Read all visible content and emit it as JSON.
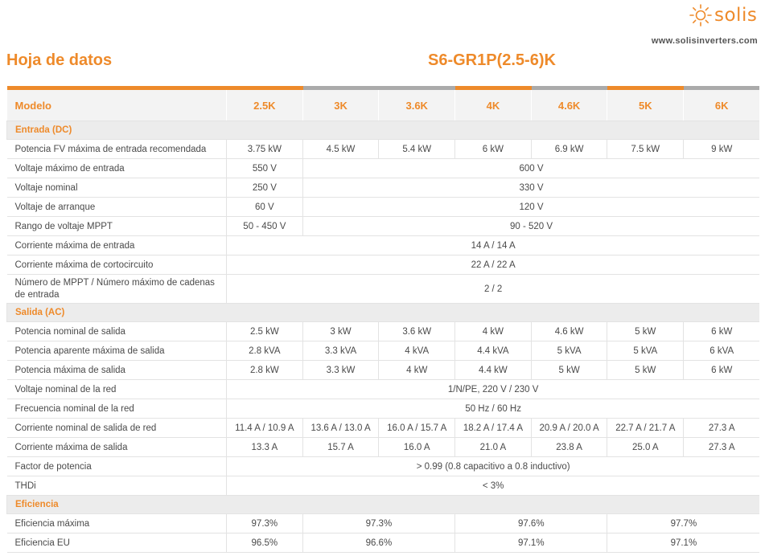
{
  "brand": {
    "logo_text": "solis",
    "website": "www.solisinverters.com",
    "accent_color": "#ee8a2a"
  },
  "title": "Hoja de datos",
  "model_series": "S6-GR1P(2.5-6)K",
  "header": {
    "label": "Modelo",
    "models": [
      "2.5K",
      "3K",
      "3.6K",
      "4K",
      "4.6K",
      "5K",
      "6K"
    ]
  },
  "sections": [
    {
      "title": "Entrada (DC)",
      "rows": [
        {
          "label": "Potencia FV máxima de entrada recomendada",
          "cells": [
            {
              "text": "3.75 kW",
              "span": 1
            },
            {
              "text": "4.5 kW",
              "span": 1
            },
            {
              "text": "5.4 kW",
              "span": 1
            },
            {
              "text": "6 kW",
              "span": 1
            },
            {
              "text": "6.9 kW",
              "span": 1
            },
            {
              "text": "7.5 kW",
              "span": 1
            },
            {
              "text": "9 kW",
              "span": 1
            }
          ]
        },
        {
          "label": "Voltaje máximo de entrada",
          "cells": [
            {
              "text": "550 V",
              "span": 1
            },
            {
              "text": "600 V",
              "span": 6
            }
          ]
        },
        {
          "label": "Voltaje nominal",
          "cells": [
            {
              "text": "250 V",
              "span": 1
            },
            {
              "text": "330 V",
              "span": 6
            }
          ]
        },
        {
          "label": "Voltaje de arranque",
          "cells": [
            {
              "text": "60 V",
              "span": 1
            },
            {
              "text": "120 V",
              "span": 6
            }
          ]
        },
        {
          "label": "Rango de voltaje MPPT",
          "cells": [
            {
              "text": "50 - 450 V",
              "span": 1
            },
            {
              "text": "90 - 520 V",
              "span": 6
            }
          ]
        },
        {
          "label": "Corriente máxima de entrada",
          "cells": [
            {
              "text": "14 A / 14 A",
              "span": 7
            }
          ]
        },
        {
          "label": "Corriente máxima de cortocircuito",
          "cells": [
            {
              "text": "22 A / 22 A",
              "span": 7
            }
          ]
        },
        {
          "label": "Número de MPPT / Número máximo de cadenas de entrada",
          "tall": true,
          "cells": [
            {
              "text": "2 / 2",
              "span": 7
            }
          ]
        }
      ]
    },
    {
      "title": "Salida (AC)",
      "rows": [
        {
          "label": "Potencia nominal de salida",
          "cells": [
            {
              "text": "2.5 kW",
              "span": 1
            },
            {
              "text": "3 kW",
              "span": 1
            },
            {
              "text": "3.6 kW",
              "span": 1
            },
            {
              "text": "4 kW",
              "span": 1
            },
            {
              "text": "4.6 kW",
              "span": 1
            },
            {
              "text": "5 kW",
              "span": 1
            },
            {
              "text": "6 kW",
              "span": 1
            }
          ]
        },
        {
          "label": "Potencia aparente máxima de salida",
          "cells": [
            {
              "text": "2.8 kVA",
              "span": 1
            },
            {
              "text": "3.3 kVA",
              "span": 1
            },
            {
              "text": "4 kVA",
              "span": 1
            },
            {
              "text": "4.4 kVA",
              "span": 1
            },
            {
              "text": "5 kVA",
              "span": 1
            },
            {
              "text": "5 kVA",
              "span": 1
            },
            {
              "text": "6 kVA",
              "span": 1
            }
          ]
        },
        {
          "label": "Potencia máxima de salida",
          "cells": [
            {
              "text": "2.8 kW",
              "span": 1
            },
            {
              "text": "3.3 kW",
              "span": 1
            },
            {
              "text": "4 kW",
              "span": 1
            },
            {
              "text": "4.4 kW",
              "span": 1
            },
            {
              "text": "5 kW",
              "span": 1
            },
            {
              "text": "5 kW",
              "span": 1
            },
            {
              "text": "6 kW",
              "span": 1
            }
          ]
        },
        {
          "label": "Voltaje nominal de la red",
          "cells": [
            {
              "text": "1/N/PE, 220 V / 230 V",
              "span": 7
            }
          ]
        },
        {
          "label": "Frecuencia nominal de la red",
          "cells": [
            {
              "text": "50 Hz / 60 Hz",
              "span": 7
            }
          ]
        },
        {
          "label": "Corriente nominal de salida de red",
          "cells": [
            {
              "text": "11.4 A / 10.9 A",
              "span": 1
            },
            {
              "text": "13.6 A / 13.0 A",
              "span": 1
            },
            {
              "text": "16.0 A / 15.7 A",
              "span": 1
            },
            {
              "text": "18.2 A / 17.4 A",
              "span": 1
            },
            {
              "text": "20.9 A / 20.0 A",
              "span": 1
            },
            {
              "text": "22.7 A / 21.7 A",
              "span": 1
            },
            {
              "text": "27.3 A",
              "span": 1
            }
          ]
        },
        {
          "label": "Corriente máxima de salida",
          "cells": [
            {
              "text": "13.3 A",
              "span": 1
            },
            {
              "text": "15.7 A",
              "span": 1
            },
            {
              "text": "16.0 A",
              "span": 1
            },
            {
              "text": "21.0 A",
              "span": 1
            },
            {
              "text": "23.8 A",
              "span": 1
            },
            {
              "text": "25.0 A",
              "span": 1
            },
            {
              "text": "27.3 A",
              "span": 1
            }
          ]
        },
        {
          "label": "Factor de potencia",
          "cells": [
            {
              "text": "> 0.99 (0.8 capacitivo a 0.8 inductivo)",
              "span": 7
            }
          ]
        },
        {
          "label": "THDi",
          "cells": [
            {
              "text": "< 3%",
              "span": 7
            }
          ]
        }
      ]
    },
    {
      "title": "Eficiencia",
      "rows": [
        {
          "label": "Eficiencia máxima",
          "cells": [
            {
              "text": "97.3%",
              "span": 1
            },
            {
              "text": "97.3%",
              "span": 2
            },
            {
              "text": "97.6%",
              "span": 2
            },
            {
              "text": "97.7%",
              "span": 2
            }
          ]
        },
        {
          "label": "Eficiencia EU",
          "cells": [
            {
              "text": "96.5%",
              "span": 1
            },
            {
              "text": "96.6%",
              "span": 2
            },
            {
              "text": "97.1%",
              "span": 2
            },
            {
              "text": "97.1%",
              "span": 2
            }
          ]
        }
      ]
    }
  ]
}
